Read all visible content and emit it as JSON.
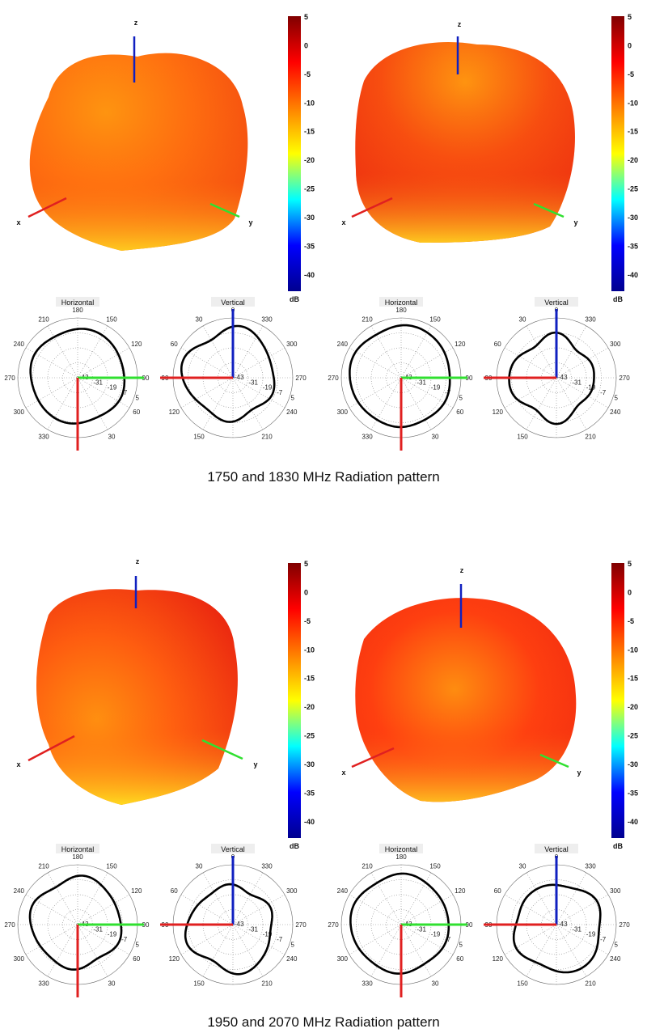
{
  "sections": [
    {
      "caption": "1750 and 1830 MHz Radiation pattern"
    },
    {
      "caption": "1950 and 2070 MHz Radiation pattern"
    }
  ],
  "axes3d": {
    "x": "x",
    "y": "y",
    "z": "z"
  },
  "colorbar": {
    "ticks": [
      "5",
      "0",
      "-5",
      "-10",
      "-15",
      "-20",
      "-25",
      "-30",
      "-35",
      "-40"
    ],
    "unit": "dB",
    "range": [
      -43,
      5
    ],
    "colormap": [
      "#00008f",
      "#0000ff",
      "#00ffff",
      "#ffff00",
      "#ff8000",
      "#ff0000",
      "#800000"
    ]
  },
  "polar": {
    "horizontal_title": "Horizontal",
    "vertical_title": "Vertical",
    "horizontal_angles": [
      "180",
      "150",
      "120",
      "90",
      "60",
      "30",
      "330",
      "300",
      "270",
      "240",
      "210"
    ],
    "vertical_angles": [
      "0",
      "330",
      "300",
      "270",
      "240",
      "210",
      "150",
      "120",
      "90",
      "60",
      "30"
    ],
    "ring_labels": [
      "-43",
      "-31",
      "-19",
      "-7",
      "5"
    ]
  },
  "colors": {
    "x_axis": "#e02020",
    "y_axis": "#30e030",
    "z_axis": "#1020c0",
    "pattern": "#000000"
  }
}
